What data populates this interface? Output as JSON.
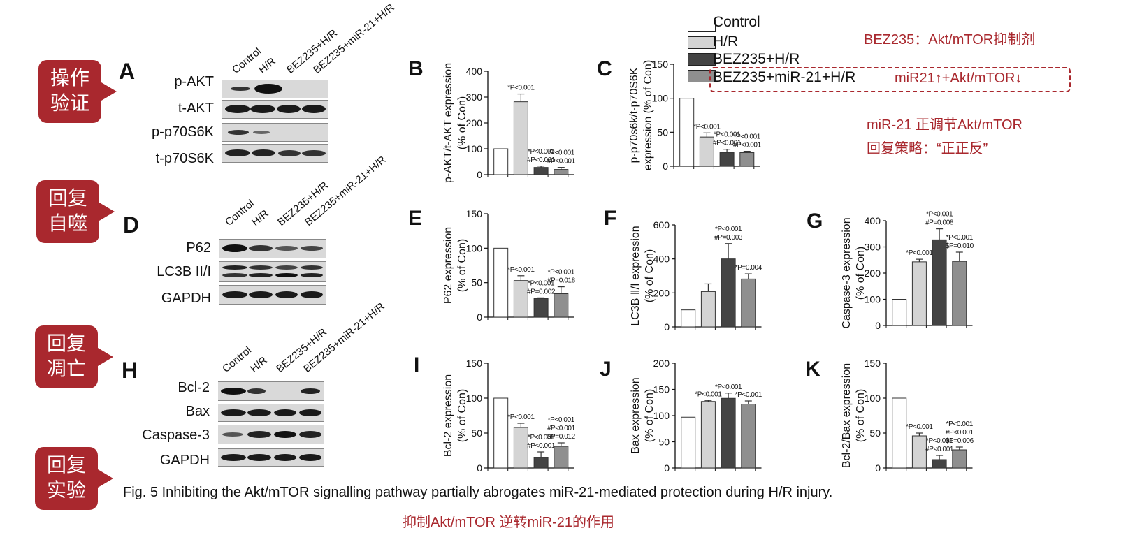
{
  "callouts": [
    {
      "line1": "操作",
      "line2": "验证",
      "letter": "A"
    },
    {
      "line1": "回复",
      "line2": "自噬",
      "letter": "D"
    },
    {
      "line1": "回复",
      "line2": "凋亡",
      "letter": "H"
    },
    {
      "line1": "回复",
      "line2": "实验"
    }
  ],
  "lanes": [
    "Control",
    "H/R",
    "BEZ235+H/R",
    "BEZ235+miR-21+H/R"
  ],
  "blots_A": [
    "p-AKT",
    "t-AKT",
    "p-p70S6K",
    "t-p70S6K"
  ],
  "blots_D": [
    "P62",
    "LC3B II/I",
    "GAPDH"
  ],
  "blots_H": [
    "Bcl-2",
    "Bax",
    "Caspase-3",
    "GAPDH"
  ],
  "legend": [
    "Control",
    "H/R",
    "BEZ235+H/R",
    "BEZ235+miR-21+H/R"
  ],
  "annotations": {
    "bez_note": "BEZ235：Akt/mTOR抑制剂",
    "mir_note": "miR21↑+Akt/mTOR↓",
    "reg_note": "miR-21 正调节Akt/mTOR",
    "strategy_note": "回复策略：“正正反”"
  },
  "caption": "Fig. 5 Inhibiting the Akt/mTOR signalling pathway partially abrogates miR-21-mediated protection during H/R injury.",
  "subcaption": "抑制Akt/mTOR 逆转miR-21的作用",
  "colors": {
    "accent": "#a9282e",
    "control": "#ffffff",
    "hr": "#d4d4d4",
    "bez": "#444444",
    "bezmir": "#8f8f8f"
  },
  "chart_data": [
    {
      "panel": "B",
      "type": "bar",
      "ylabel": "p-AKT/t-AKT expression\n(% of Con)",
      "ylim": [
        0,
        400
      ],
      "yticks": [
        0,
        100,
        200,
        300,
        400
      ],
      "categories": [
        "Control",
        "H/R",
        "BEZ235+H/R",
        "BEZ235+miR-21+H/R"
      ],
      "values": [
        100,
        282,
        28,
        20
      ],
      "errors": [
        0,
        30,
        5,
        8
      ],
      "annotations": [
        "",
        "*P<0.001",
        "*P<0.001\n#P<0.001",
        "*P<0.001\n#P<0.001"
      ]
    },
    {
      "panel": "C",
      "type": "bar",
      "ylabel": "p-p70s6k/t-p70S6K\nexpression (% of Con)",
      "ylim": [
        0,
        150
      ],
      "yticks": [
        0,
        50,
        100,
        150
      ],
      "categories": [
        "Control",
        "H/R",
        "BEZ235+H/R",
        "BEZ235+miR-21+H/R"
      ],
      "values": [
        100,
        43,
        20,
        20
      ],
      "errors": [
        0,
        6,
        5,
        2
      ],
      "annotations": [
        "",
        "*P<0.001",
        "*P<0.001\n#P<0.001",
        "*P<0.001\n#P<0.001"
      ]
    },
    {
      "panel": "E",
      "type": "bar",
      "ylabel": "P62 expression\n(% of Con)",
      "ylim": [
        0,
        150
      ],
      "yticks": [
        0,
        50,
        100,
        150
      ],
      "categories": [
        "Control",
        "H/R",
        "BEZ235+H/R",
        "BEZ235+miR-21+H/R"
      ],
      "values": [
        100,
        53,
        27,
        34
      ],
      "errors": [
        0,
        7,
        1,
        10
      ],
      "annotations": [
        "",
        "*P<0.001",
        "*P<0.001\n#P=0.002",
        "*P<0.001\n#P=0.018"
      ]
    },
    {
      "panel": "F",
      "type": "bar",
      "ylabel": "LC3B Ⅱ/Ⅰ expression\n(% of Con)",
      "ylim": [
        0,
        600
      ],
      "yticks": [
        0,
        200,
        400,
        600
      ],
      "categories": [
        "Control",
        "H/R",
        "BEZ235+H/R",
        "BEZ235+miR-21+H/R"
      ],
      "values": [
        100,
        208,
        400,
        282
      ],
      "errors": [
        0,
        45,
        90,
        30
      ],
      "annotations": [
        "",
        "",
        "*P<0.001\n#P=0.003",
        "*P=0.004"
      ]
    },
    {
      "panel": "G",
      "type": "bar",
      "ylabel": "Caspase-3 expression\n(% of Con)",
      "ylim": [
        0,
        400
      ],
      "yticks": [
        0,
        100,
        200,
        300,
        400
      ],
      "categories": [
        "Control",
        "H/R",
        "BEZ235+H/R",
        "BEZ235+miR-21+H/R"
      ],
      "values": [
        100,
        243,
        327,
        245
      ],
      "errors": [
        0,
        10,
        42,
        35
      ],
      "annotations": [
        "",
        "*P<0.001",
        "*P<0.001\n#P=0.008",
        "*P<0.001\n$P=0.010"
      ]
    },
    {
      "panel": "I",
      "type": "bar",
      "ylabel": "Bcl-2  expression\n(% of Con)",
      "ylim": [
        0,
        150
      ],
      "yticks": [
        0,
        50,
        100,
        150
      ],
      "categories": [
        "Control",
        "H/R",
        "BEZ235+H/R",
        "BEZ235+miR-21+H/R"
      ],
      "values": [
        100,
        58,
        15,
        31
      ],
      "errors": [
        0,
        6,
        8,
        5
      ],
      "annotations": [
        "",
        "*P<0.001",
        "*P<0.001\n#P<0.001",
        "*P<0.001\n#P<0.001\n$P=0.012"
      ]
    },
    {
      "panel": "J",
      "type": "bar",
      "ylabel": "Bax expression\n(% of Con)",
      "ylim": [
        0,
        200
      ],
      "yticks": [
        0,
        50,
        100,
        150,
        200
      ],
      "categories": [
        "Control",
        "H/R",
        "BEZ235+H/R",
        "BEZ235+miR-21+H/R"
      ],
      "values": [
        97,
        127,
        133,
        122
      ],
      "errors": [
        0,
        2,
        10,
        6
      ],
      "annotations": [
        "",
        "*P<0.001",
        "*P<0.001",
        "*P<0.001"
      ]
    },
    {
      "panel": "K",
      "type": "bar",
      "ylabel": "Bcl-2/Bax  expression\n(% of Con)",
      "ylim": [
        0,
        150
      ],
      "yticks": [
        0,
        50,
        100,
        150
      ],
      "categories": [
        "Control",
        "H/R",
        "BEZ235+H/R",
        "BEZ235+miR-21+H/R"
      ],
      "values": [
        100,
        46,
        12,
        26
      ],
      "errors": [
        0,
        4,
        6,
        4
      ],
      "annotations": [
        "",
        "*P<0.001",
        "*P<0.001\n#P<0.001",
        "*P<0.001\n#P<0.001\n$P=0.006"
      ]
    }
  ]
}
